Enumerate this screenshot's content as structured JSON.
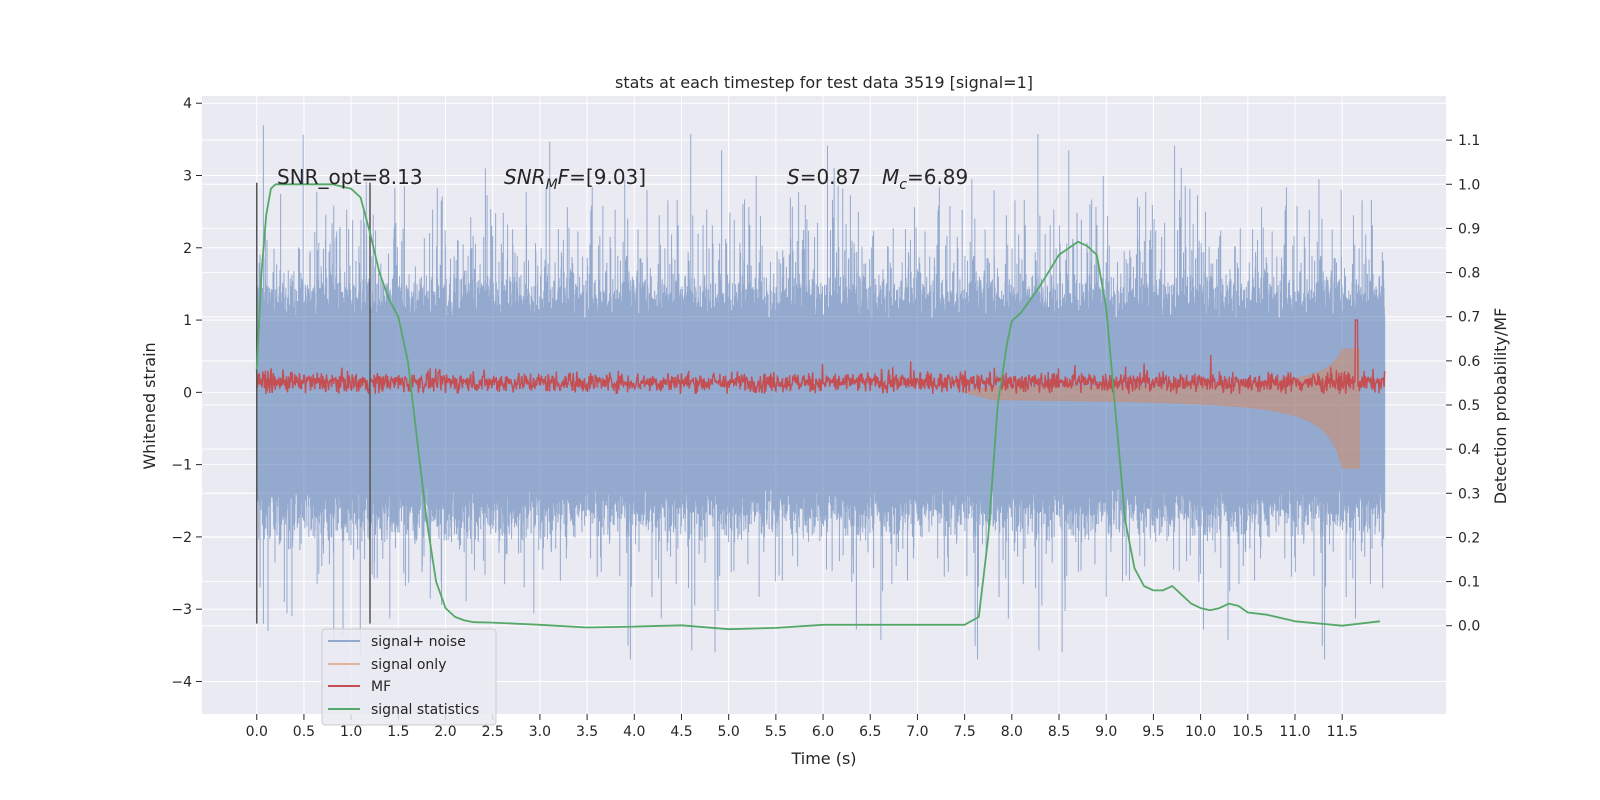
{
  "chart_data": {
    "type": "line",
    "title": "stats at each timestep for test data 3519 [signal=1]",
    "xlabel": "Time (s)",
    "ylabel": "Whitened strain",
    "ylabel_right": "Detection probability/MF",
    "xlim": [
      -0.58,
      12.6
    ],
    "ylim": [
      -4.45,
      4.1
    ],
    "ylim_right": [
      -0.2,
      1.2
    ],
    "x_ticks": [
      "0.0",
      "0.5",
      "1.0",
      "1.5",
      "2.0",
      "2.5",
      "3.0",
      "3.5",
      "4.0",
      "4.5",
      "5.0",
      "5.5",
      "6.0",
      "6.5",
      "7.0",
      "7.5",
      "8.0",
      "8.5",
      "9.0",
      "9.5",
      "10.0",
      "10.5",
      "11.0",
      "11.5"
    ],
    "y_ticks": [
      "4",
      "3",
      "2",
      "1",
      "0",
      "−1",
      "−2",
      "−3",
      "−4"
    ],
    "y_ticks_right": [
      "1.1",
      "1.0",
      "0.9",
      "0.8",
      "0.7",
      "0.6",
      "0.5",
      "0.4",
      "0.3",
      "0.2",
      "0.1",
      "0.0"
    ],
    "grid": true,
    "annotations": {
      "snr_opt": "SNR_opt=8.13",
      "snr_mf_italic": "SNR",
      "snr_mf_sub": "M",
      "snr_mf_italic2": "F",
      "snr_mf_rest": "=[9.03]",
      "s_italic": "S",
      "s_rest": "=0.87",
      "mc_italic": "M",
      "mc_sub": "c",
      "mc_rest": "=6.89"
    },
    "markers_x": [
      0.0,
      1.2
    ],
    "markers_y_range": [
      -3.2,
      2.9
    ],
    "legend_placement": "lower-left",
    "series": [
      {
        "name": "signal+ noise",
        "color": "#4c72b0",
        "note": "dense noise band, mostly within [-1.4, 1.1], spikes to about ±3.5"
      },
      {
        "name": "signal only",
        "color": "#dd8452",
        "note": "chirp that grows from about 7.5 s and peaks near 11.65 s at about ±1"
      },
      {
        "name": "MF",
        "color": "#c44e52",
        "note": "matched filter output around 0.15, spike of about 1.0 at 11.65 s"
      },
      {
        "name": "signal statistics",
        "color": "#55a868",
        "axis": "right",
        "x": [
          0.0,
          0.05,
          0.1,
          0.15,
          0.2,
          0.3,
          0.5,
          0.8,
          1.0,
          1.1,
          1.2,
          1.3,
          1.4,
          1.5,
          1.6,
          1.7,
          1.8,
          1.9,
          2.0,
          2.1,
          2.2,
          2.3,
          2.5,
          3.0,
          3.5,
          4.0,
          4.5,
          5.0,
          5.5,
          6.0,
          6.5,
          7.0,
          7.5,
          7.65,
          7.75,
          7.85,
          7.95,
          8.0,
          8.1,
          8.2,
          8.3,
          8.5,
          8.7,
          8.8,
          8.9,
          9.0,
          9.1,
          9.2,
          9.3,
          9.4,
          9.5,
          9.6,
          9.7,
          9.8,
          9.9,
          10.0,
          10.1,
          10.2,
          10.3,
          10.4,
          10.5,
          10.7,
          11.0,
          11.5,
          11.9
        ],
        "values": [
          0.58,
          0.8,
          0.93,
          0.99,
          1.0,
          1.0,
          1.0,
          1.0,
          0.99,
          0.97,
          0.89,
          0.8,
          0.74,
          0.7,
          0.6,
          0.42,
          0.24,
          0.1,
          0.04,
          0.02,
          0.012,
          0.008,
          0.007,
          0.002,
          -0.004,
          -0.002,
          0.001,
          -0.008,
          -0.005,
          0.002,
          0.002,
          0.002,
          0.002,
          0.02,
          0.2,
          0.5,
          0.64,
          0.69,
          0.71,
          0.74,
          0.77,
          0.84,
          0.87,
          0.86,
          0.84,
          0.72,
          0.48,
          0.24,
          0.13,
          0.09,
          0.08,
          0.08,
          0.09,
          0.07,
          0.05,
          0.04,
          0.035,
          0.04,
          0.05,
          0.045,
          0.03,
          0.025,
          0.01,
          0.0,
          0.01
        ]
      }
    ]
  }
}
